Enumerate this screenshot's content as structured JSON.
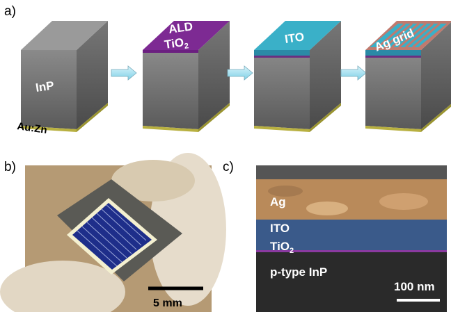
{
  "panel_a": {
    "label": "a)",
    "cube_1": {
      "text": "InP",
      "contact": "Au:Zn"
    },
    "cube_2": {
      "line_1": "ALD",
      "formula": {
        "base": "TiO",
        "sub": "2"
      }
    },
    "cube_3": {
      "text": "ITO"
    },
    "cube_4": {
      "text": "Ag grid"
    }
  },
  "panel_b": {
    "label": "b)",
    "scale_bar": "5 mm"
  },
  "panel_c": {
    "label": "c)",
    "layer_1": "Ag",
    "layer_2": "ITO",
    "layer_3": {
      "base": "TiO",
      "sub": "2"
    },
    "substrate": "p-type InP",
    "scale_bar": "100 nm"
  }
}
